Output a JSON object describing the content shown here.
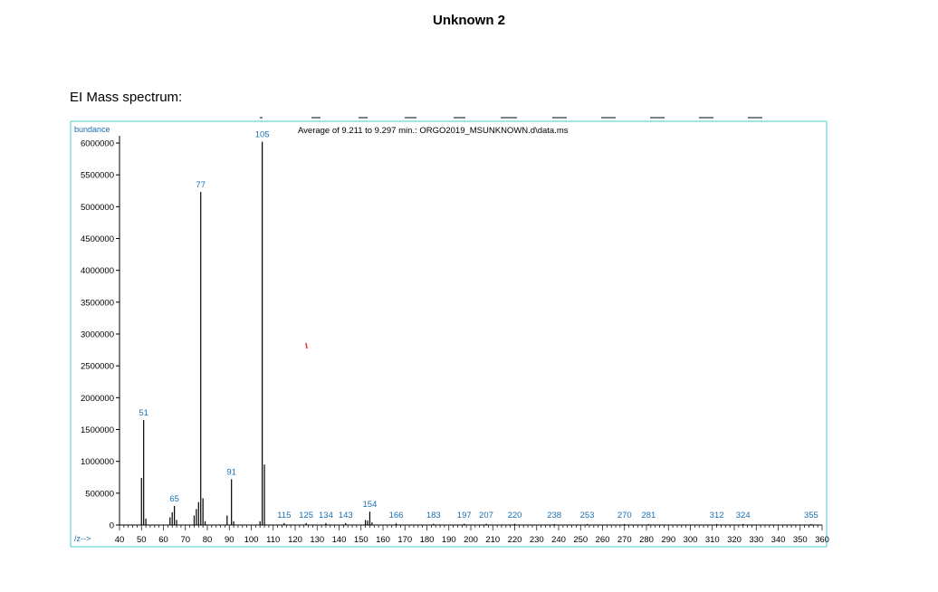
{
  "document": {
    "title": "Unknown 2",
    "section_label": "EI Mass spectrum:"
  },
  "chart_data": {
    "type": "bar",
    "header": "Average of 9.211 to 9.297 min.: ORGO2019_MSUNKNOWN.d\\data.ms",
    "ylabel": "bundance",
    "xlabel": "/z-->",
    "xlim": [
      40,
      360
    ],
    "ylim": [
      0,
      6000000
    ],
    "x_ticks": [
      40,
      50,
      60,
      70,
      80,
      90,
      100,
      110,
      120,
      130,
      140,
      150,
      160,
      170,
      180,
      190,
      200,
      210,
      220,
      230,
      240,
      250,
      260,
      270,
      280,
      290,
      300,
      310,
      320,
      330,
      340,
      350,
      360
    ],
    "y_ticks": [
      0,
      500000,
      1000000,
      1500000,
      2000000,
      2500000,
      3000000,
      3500000,
      4000000,
      4500000,
      5000000,
      5500000,
      6000000
    ],
    "peaks": [
      {
        "mz": 50,
        "abundance": 740000
      },
      {
        "mz": 51,
        "abundance": 1650000
      },
      {
        "mz": 52,
        "abundance": 100000
      },
      {
        "mz": 63,
        "abundance": 120000
      },
      {
        "mz": 64,
        "abundance": 200000
      },
      {
        "mz": 65,
        "abundance": 300000
      },
      {
        "mz": 66,
        "abundance": 80000
      },
      {
        "mz": 74,
        "abundance": 150000
      },
      {
        "mz": 75,
        "abundance": 250000
      },
      {
        "mz": 76,
        "abundance": 360000
      },
      {
        "mz": 77,
        "abundance": 5230000
      },
      {
        "mz": 78,
        "abundance": 420000
      },
      {
        "mz": 79,
        "abundance": 60000
      },
      {
        "mz": 89,
        "abundance": 150000
      },
      {
        "mz": 91,
        "abundance": 720000
      },
      {
        "mz": 92,
        "abundance": 60000
      },
      {
        "mz": 104,
        "abundance": 60000
      },
      {
        "mz": 105,
        "abundance": 6020000
      },
      {
        "mz": 106,
        "abundance": 950000
      },
      {
        "mz": 115,
        "abundance": 30000
      },
      {
        "mz": 125,
        "abundance": 30000
      },
      {
        "mz": 134,
        "abundance": 30000
      },
      {
        "mz": 143,
        "abundance": 30000
      },
      {
        "mz": 152,
        "abundance": 80000
      },
      {
        "mz": 153,
        "abundance": 70000
      },
      {
        "mz": 154,
        "abundance": 210000
      },
      {
        "mz": 155,
        "abundance": 40000
      },
      {
        "mz": 166,
        "abundance": 25000
      },
      {
        "mz": 183,
        "abundance": 20000
      },
      {
        "mz": 197,
        "abundance": 20000
      },
      {
        "mz": 207,
        "abundance": 20000
      },
      {
        "mz": 220,
        "abundance": 20000
      },
      {
        "mz": 238,
        "abundance": 15000
      },
      {
        "mz": 253,
        "abundance": 15000
      },
      {
        "mz": 270,
        "abundance": 15000
      },
      {
        "mz": 281,
        "abundance": 15000
      },
      {
        "mz": 312,
        "abundance": 15000
      },
      {
        "mz": 324,
        "abundance": 15000
      },
      {
        "mz": 355,
        "abundance": 15000
      }
    ],
    "peak_labels": [
      {
        "mz": 51,
        "text": "51",
        "abundance": 1650000
      },
      {
        "mz": 65,
        "text": "65",
        "abundance": 300000
      },
      {
        "mz": 77,
        "text": "77",
        "abundance": 5230000
      },
      {
        "mz": 91,
        "text": "91",
        "abundance": 720000
      },
      {
        "mz": 105,
        "text": "105",
        "abundance": 6020000
      },
      {
        "mz": 115,
        "text": "115",
        "abundance": 30000
      },
      {
        "mz": 125,
        "text": "125",
        "abundance": 30000
      },
      {
        "mz": 134,
        "text": "134",
        "abundance": 30000
      },
      {
        "mz": 143,
        "text": "143",
        "abundance": 30000
      },
      {
        "mz": 154,
        "text": "154",
        "abundance": 210000
      },
      {
        "mz": 166,
        "text": "166",
        "abundance": 30000
      },
      {
        "mz": 183,
        "text": "183",
        "abundance": 30000
      },
      {
        "mz": 197,
        "text": "197",
        "abundance": 30000
      },
      {
        "mz": 207,
        "text": "207",
        "abundance": 30000
      },
      {
        "mz": 220,
        "text": "220",
        "abundance": 30000
      },
      {
        "mz": 238,
        "text": "238",
        "abundance": 30000
      },
      {
        "mz": 253,
        "text": "253",
        "abundance": 30000
      },
      {
        "mz": 270,
        "text": "270",
        "abundance": 30000
      },
      {
        "mz": 281,
        "text": "281",
        "abundance": 30000
      },
      {
        "mz": 312,
        "text": "312",
        "abundance": 30000
      },
      {
        "mz": 324,
        "text": "324",
        "abundance": 30000
      },
      {
        "mz": 355,
        "text": "355",
        "abundance": 30000
      }
    ],
    "colors": {
      "frame": "#6fd3d6",
      "peak": "#000000",
      "label": "#1a6fb0",
      "stray_mark": "#e03030"
    }
  }
}
